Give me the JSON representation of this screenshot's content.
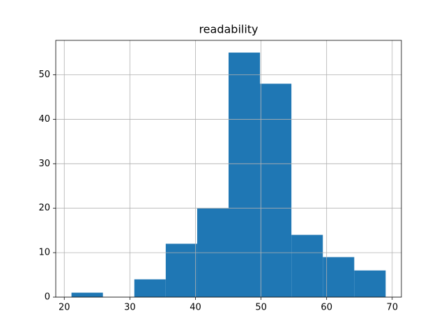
{
  "chart_data": {
    "type": "histogram",
    "title": "readability",
    "bins": [
      21.1,
      25.89,
      30.68,
      35.47,
      40.26,
      45.05,
      49.84,
      54.63,
      59.42,
      64.21,
      69.0
    ],
    "values": [
      1,
      0,
      4,
      12,
      20,
      55,
      48,
      14,
      9,
      6
    ],
    "color": "#1f77b4",
    "xlim": [
      18.7,
      71.4
    ],
    "xticks": [
      20,
      30,
      40,
      50,
      60,
      70
    ],
    "ylim": [
      0,
      57.75
    ],
    "yticks": [
      0,
      10,
      20,
      30,
      40,
      50
    ],
    "grid": true
  }
}
